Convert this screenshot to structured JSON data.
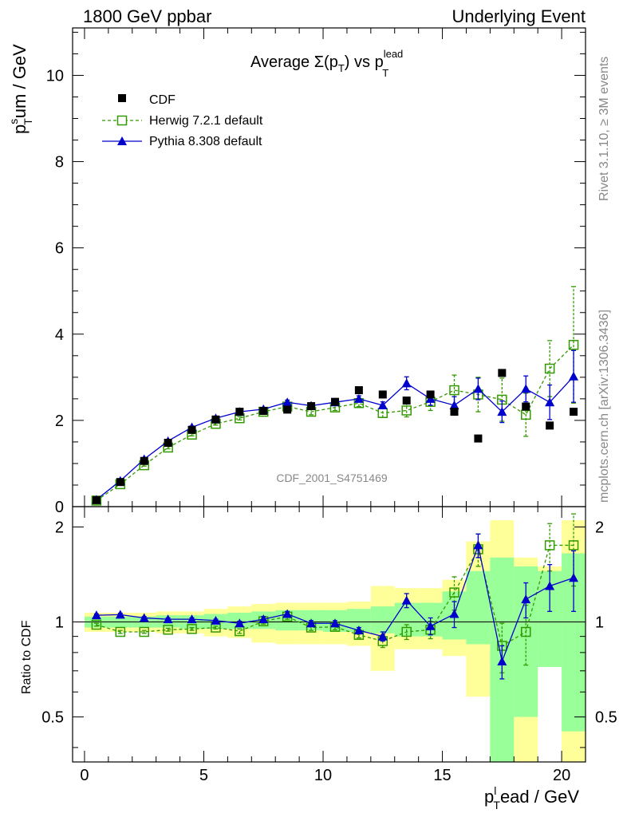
{
  "header": {
    "left": "1800 GeV ppbar",
    "right": "Underlying Event",
    "side_top": "Rivet 3.1.10, ≥ 3M events",
    "side_bottom": "mcplots.cern.ch [arXiv:1306.3436]",
    "watermark": "CDF_2001_S4751469"
  },
  "chart_data": [
    {
      "type": "scatter",
      "panel": "main",
      "title": {
        "main": "Average Σ(p",
        "main_sub": "T",
        "main_mid": ") vs p",
        "main_sup": "lead",
        "main_sub2": "T"
      },
      "ylabel": {
        "base": "p",
        "sup": "s",
        "sub": "T",
        "rest": "um / GeV"
      },
      "xlim": [
        -0.5,
        21
      ],
      "ylim": [
        0,
        11.1
      ],
      "yticks": [
        0,
        2,
        4,
        6,
        8,
        10
      ],
      "legend_position": "top-left",
      "series": [
        {
          "name": "CDF",
          "color": "#000000",
          "marker": "square-filled",
          "x": [
            0.5,
            1.5,
            2.5,
            3.5,
            4.5,
            5.5,
            6.5,
            7.5,
            8.5,
            9.5,
            10.5,
            11.5,
            12.5,
            13.5,
            14.5,
            15.5,
            16.5,
            17.5,
            18.5,
            19.5,
            20.5
          ],
          "y": [
            0.15,
            0.57,
            1.06,
            1.48,
            1.78,
            2.02,
            2.2,
            2.22,
            2.25,
            2.33,
            2.43,
            2.7,
            2.6,
            2.46,
            2.6,
            2.2,
            1.58,
            3.1,
            2.32,
            1.88,
            2.2
          ]
        },
        {
          "name": "Herwig 7.2.1 default",
          "color": "#339900",
          "marker": "square-open",
          "line": "dashed",
          "x": [
            0.5,
            1.5,
            2.5,
            3.5,
            4.5,
            5.5,
            6.5,
            7.5,
            8.5,
            9.5,
            10.5,
            11.5,
            12.5,
            13.5,
            14.5,
            15.5,
            16.5,
            17.5,
            18.5,
            19.5,
            20.5
          ],
          "y": [
            0.14,
            0.52,
            0.96,
            1.37,
            1.67,
            1.92,
            2.05,
            2.2,
            2.32,
            2.2,
            2.3,
            2.4,
            2.17,
            2.23,
            2.43,
            2.7,
            2.6,
            2.48,
            2.13,
            3.2,
            3.75
          ],
          "err": [
            0.02,
            0.02,
            0.02,
            0.03,
            0.03,
            0.03,
            0.04,
            0.05,
            0.06,
            0.07,
            0.07,
            0.08,
            0.1,
            0.15,
            0.2,
            0.35,
            0.4,
            0.5,
            0.5,
            0.65,
            1.35
          ]
        },
        {
          "name": "Pythia 8.308 default",
          "color": "#0000cc",
          "marker": "triangle-filled",
          "line": "solid",
          "x": [
            0.5,
            1.5,
            2.5,
            3.5,
            4.5,
            5.5,
            6.5,
            7.5,
            8.5,
            9.5,
            10.5,
            11.5,
            12.5,
            13.5,
            14.5,
            15.5,
            16.5,
            17.5,
            18.5,
            19.5,
            20.5
          ],
          "y": [
            0.16,
            0.6,
            1.1,
            1.52,
            1.84,
            2.05,
            2.2,
            2.26,
            2.42,
            2.34,
            2.42,
            2.5,
            2.35,
            2.86,
            2.5,
            2.35,
            2.73,
            2.2,
            2.73,
            2.42,
            3.02
          ],
          "err": [
            0.01,
            0.02,
            0.02,
            0.02,
            0.03,
            0.03,
            0.03,
            0.04,
            0.05,
            0.05,
            0.06,
            0.07,
            0.08,
            0.15,
            0.15,
            0.2,
            0.25,
            0.25,
            0.3,
            0.4,
            0.6
          ]
        }
      ]
    },
    {
      "type": "scatter",
      "panel": "ratio",
      "ylabel": "Ratio to CDF",
      "xlabel": {
        "base": "p",
        "sup": "l",
        "sub": "T",
        "rest": "ead / GeV"
      },
      "xlim": [
        -0.5,
        21
      ],
      "ylim": [
        0.36,
        2.32
      ],
      "yscale": "log",
      "yticks": [
        0.5,
        1,
        2
      ],
      "xticks": [
        0,
        5,
        10,
        15,
        20
      ],
      "reference_line": 1,
      "bands": {
        "x_edges": [
          0,
          1,
          2,
          3,
          4,
          5,
          6,
          7,
          8,
          9,
          10,
          11,
          12,
          13,
          14,
          15,
          16,
          17,
          18,
          19,
          20,
          21
        ],
        "inner_color": "#99ff99",
        "outer_color": "#ffff99",
        "inner_low": [
          0.96,
          0.96,
          0.96,
          0.96,
          0.95,
          0.95,
          0.95,
          0.95,
          0.94,
          0.94,
          0.93,
          0.93,
          0.92,
          0.9,
          0.9,
          0.88,
          0.85,
          0.35,
          0.5,
          0.72,
          0.45
        ],
        "inner_high": [
          1.04,
          1.04,
          1.04,
          1.05,
          1.05,
          1.06,
          1.07,
          1.08,
          1.09,
          1.09,
          1.09,
          1.1,
          1.12,
          1.15,
          1.15,
          1.25,
          1.45,
          1.6,
          1.5,
          1.45,
          1.65
        ],
        "outer_low": [
          0.93,
          0.93,
          0.93,
          0.92,
          0.92,
          0.9,
          0.89,
          0.86,
          0.85,
          0.85,
          0.85,
          0.84,
          0.7,
          0.82,
          0.82,
          0.78,
          0.58,
          0.36,
          0.36,
          0.8,
          0.36
        ],
        "outer_high": [
          1.07,
          1.07,
          1.07,
          1.08,
          1.08,
          1.1,
          1.12,
          1.14,
          1.15,
          1.15,
          1.15,
          1.16,
          1.3,
          1.28,
          1.28,
          1.36,
          1.8,
          2.1,
          1.6,
          1.5,
          2.1
        ]
      },
      "series": [
        {
          "name": "Herwig 7.2.1 default",
          "color": "#339900",
          "marker": "square-open",
          "line": "dashed",
          "x": [
            0.5,
            1.5,
            2.5,
            3.5,
            4.5,
            5.5,
            6.5,
            7.5,
            8.5,
            9.5,
            10.5,
            11.5,
            12.5,
            13.5,
            14.5,
            15.5,
            16.5,
            17.5,
            18.5,
            19.5,
            20.5
          ],
          "y": [
            0.98,
            0.93,
            0.93,
            0.945,
            0.95,
            0.96,
            0.935,
            1.005,
            1.04,
            0.96,
            0.965,
            0.91,
            0.87,
            0.93,
            0.945,
            1.24,
            1.7,
            0.84,
            0.93,
            1.75,
            1.75
          ],
          "err": [
            0.01,
            0.01,
            0.01,
            0.01,
            0.01,
            0.01,
            0.015,
            0.02,
            0.02,
            0.02,
            0.02,
            0.02,
            0.04,
            0.05,
            0.06,
            0.15,
            0.2,
            0.15,
            0.2,
            0.3,
            0.45
          ]
        },
        {
          "name": "Pythia 8.308 default",
          "color": "#0000cc",
          "marker": "triangle-filled",
          "line": "solid",
          "x": [
            0.5,
            1.5,
            2.5,
            3.5,
            4.5,
            5.5,
            6.5,
            7.5,
            8.5,
            9.5,
            10.5,
            11.5,
            12.5,
            13.5,
            14.5,
            15.5,
            16.5,
            17.5,
            18.5,
            19.5,
            20.5
          ],
          "y": [
            1.05,
            1.055,
            1.03,
            1.02,
            1.02,
            1.01,
            0.99,
            1.02,
            1.06,
            0.99,
            0.99,
            0.94,
            0.9,
            1.17,
            0.97,
            1.06,
            1.75,
            0.75,
            1.18,
            1.3,
            1.38
          ],
          "err": [
            0.01,
            0.01,
            0.01,
            0.01,
            0.01,
            0.01,
            0.015,
            0.02,
            0.02,
            0.02,
            0.02,
            0.02,
            0.03,
            0.06,
            0.06,
            0.1,
            0.15,
            0.09,
            0.15,
            0.22,
            0.3
          ]
        }
      ]
    }
  ]
}
